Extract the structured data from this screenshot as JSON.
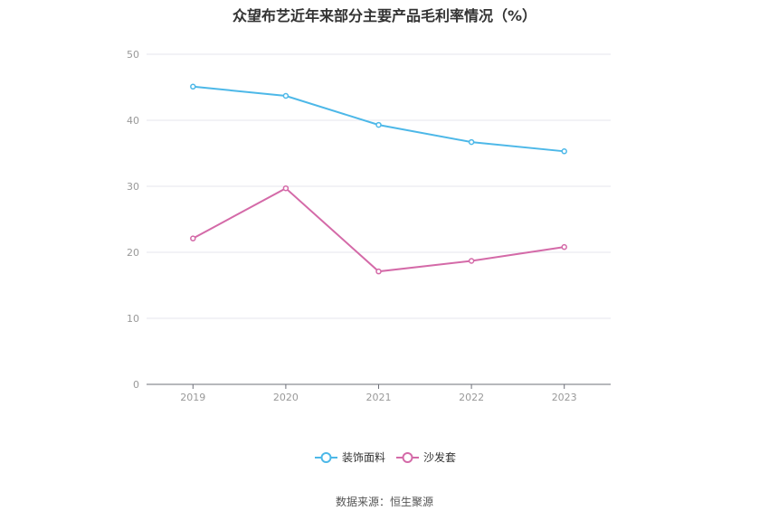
{
  "chart_data": {
    "type": "line",
    "title": "众望布艺近年来部分主要产品毛利率情况（%）",
    "categories": [
      "2019",
      "2020",
      "2021",
      "2022",
      "2023"
    ],
    "yticks": [
      "0",
      "10",
      "20",
      "30",
      "40",
      "50"
    ],
    "ylim": [
      0,
      50
    ],
    "grid": true,
    "legend_position": "bottom-center",
    "series": [
      {
        "name": "装饰面料",
        "color": "#4db8e8",
        "values": [
          45.1,
          43.7,
          39.3,
          36.7,
          35.3
        ]
      },
      {
        "name": "沙发套",
        "color": "#d46aa8",
        "values": [
          22.1,
          29.7,
          17.1,
          18.7,
          20.8
        ]
      }
    ]
  },
  "footer": {
    "source": "数据来源：恒生聚源"
  }
}
